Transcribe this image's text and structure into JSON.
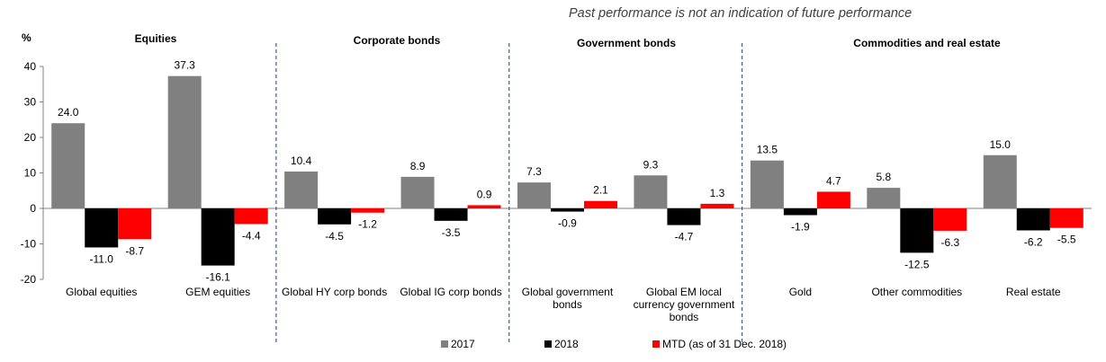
{
  "note": "Past performance is not an indication of future performance",
  "chart_data": {
    "type": "bar",
    "ylabel": "%",
    "ylim": [
      -20,
      40
    ],
    "yticks": [
      40,
      30,
      20,
      10,
      0,
      -10,
      -20
    ],
    "groups": [
      {
        "label": "Equities",
        "categories": [
          "Global equities",
          "GEM equities"
        ]
      },
      {
        "label": "Corporate bonds",
        "categories": [
          "Global HY corp bonds",
          "Global IG corp bonds"
        ]
      },
      {
        "label": "Government bonds",
        "categories": [
          "Global government bonds",
          "Global EM local currency government bonds"
        ]
      },
      {
        "label": "Commodities and real estate",
        "categories": [
          "Gold",
          "Other commodities",
          "Real estate"
        ]
      }
    ],
    "categories": [
      "Global equities",
      "GEM equities",
      "Global HY corp bonds",
      "Global IG corp bonds",
      "Global government bonds",
      "Global EM local currency government bonds",
      "Gold",
      "Other commodities",
      "Real estate"
    ],
    "series": [
      {
        "name": "2017",
        "color": "#808080",
        "values": [
          24.0,
          37.3,
          10.4,
          8.9,
          7.3,
          9.3,
          13.5,
          5.8,
          15.0
        ],
        "labels": [
          "24.0",
          "37.3",
          "10.4",
          "8.9",
          "7.3",
          "9.3",
          "13.5",
          "5.8",
          "15.0"
        ]
      },
      {
        "name": "2018",
        "color": "#000000",
        "values": [
          -11.0,
          -16.1,
          -4.5,
          -3.5,
          -0.9,
          -4.7,
          -1.9,
          -12.5,
          -6.2
        ],
        "labels": [
          "-11.0",
          "-16.1",
          "-4.5",
          "-3.5",
          "-0.9",
          "-4.7",
          "-1.9",
          "-12.5",
          "-6.2"
        ]
      },
      {
        "name": "MTD (as of 31 Dec. 2018)",
        "color": "#ff0000",
        "values": [
          -8.7,
          -4.4,
          -1.2,
          0.9,
          2.1,
          1.3,
          4.7,
          -6.3,
          -5.5
        ],
        "labels": [
          "-8.7",
          "-4.4",
          "-1.2",
          "0.9",
          "2.1",
          "1.3",
          "4.7",
          "-6.3",
          "-5.5"
        ]
      }
    ]
  },
  "category_lines": [
    [
      "Global equities"
    ],
    [
      "GEM equities"
    ],
    [
      "Global HY corp bonds"
    ],
    [
      "Global IG corp bonds"
    ],
    [
      "Global government",
      "bonds"
    ],
    [
      "Global EM local",
      "currency government",
      "bonds"
    ],
    [
      "Gold"
    ],
    [
      "Other commodities"
    ],
    [
      "Real estate"
    ]
  ],
  "group_titles": [
    "Equities",
    "Corporate bonds",
    "Government bonds",
    "Commodities and real estate"
  ]
}
